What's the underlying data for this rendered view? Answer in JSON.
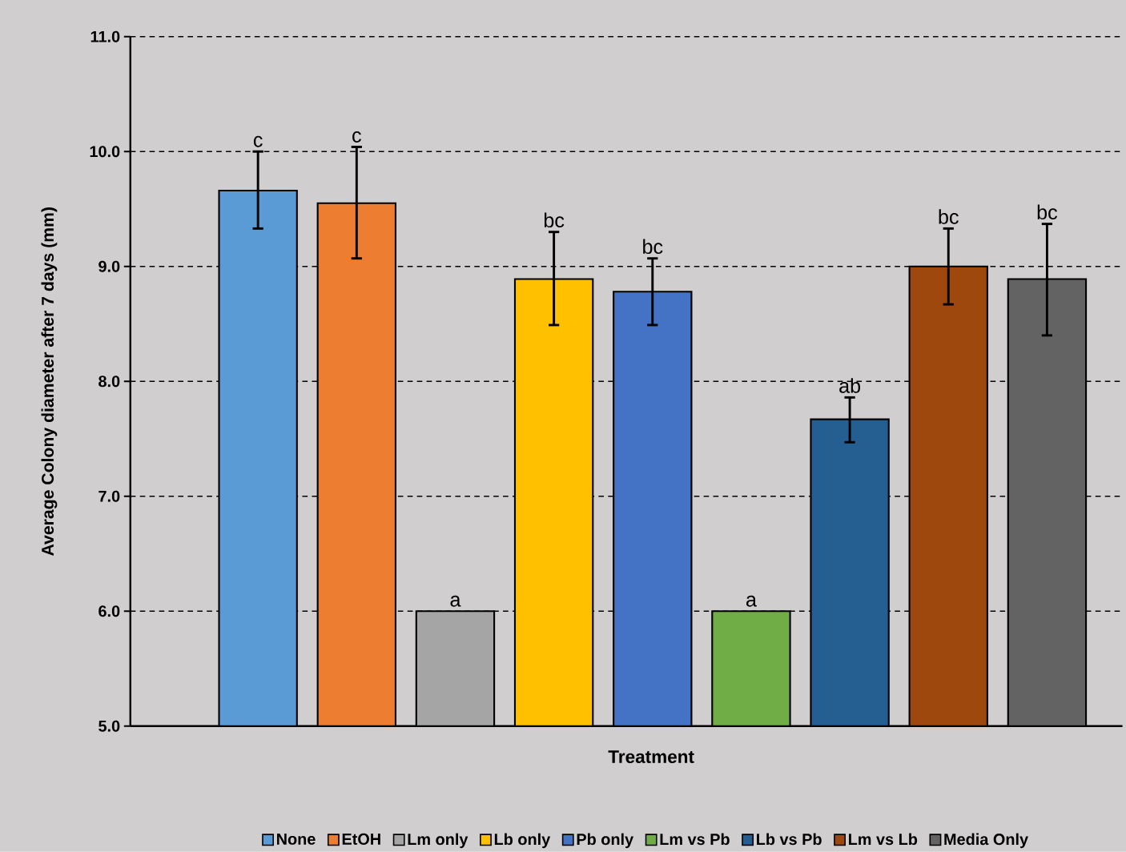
{
  "chart_data": {
    "type": "bar",
    "xlabel": "Treatment",
    "ylabel": "Average Colony diameter after 7 days (mm)",
    "categories": [
      null
    ],
    "series": [
      {
        "name": "None",
        "color": "#5b9bd5",
        "values": [
          9.66
        ],
        "errors": [
          [
            9.33,
            10.0
          ]
        ]
      },
      {
        "name": "EtOH",
        "color": "#ed7d31",
        "values": [
          9.55
        ],
        "errors": [
          [
            9.07,
            10.04
          ]
        ]
      },
      {
        "name": "Lm only",
        "color": "#a5a5a5",
        "values": [
          6.0
        ]
      },
      {
        "name": "Lb only",
        "color": "#ffc000",
        "values": [
          8.89
        ],
        "errors": [
          [
            8.49,
            9.3
          ]
        ]
      },
      {
        "name": "Pb only",
        "color": "#4472c4",
        "values": [
          8.78
        ],
        "errors": [
          [
            8.49,
            9.07
          ]
        ]
      },
      {
        "name": "Lm vs Pb",
        "color": "#70ad47",
        "values": [
          6.0
        ]
      },
      {
        "name": "Lb vs Pb",
        "color": "#255e91",
        "values": [
          7.67
        ],
        "errors": [
          [
            7.47,
            7.86
          ]
        ]
      },
      {
        "name": "Lm vs Lb",
        "color": "#9e480e",
        "values": [
          9.0
        ],
        "errors": [
          [
            8.67,
            9.33
          ]
        ]
      },
      {
        "name": "Media Only",
        "color": "#636363",
        "values": [
          8.89
        ],
        "errors": [
          [
            8.4,
            9.37
          ]
        ]
      }
    ],
    "ylim": [
      5.0,
      11.0
    ],
    "yticks": [
      {
        "value": 5,
        "label": "5.0"
      },
      {
        "value": 6,
        "label": "6.0"
      },
      {
        "value": 7,
        "label": "7.0"
      },
      {
        "value": 8,
        "label": "8.0"
      },
      {
        "value": 9,
        "label": "9.0"
      },
      {
        "value": 10,
        "label": "10.0"
      },
      {
        "value": 11,
        "label": "11.0"
      }
    ],
    "grid": "y",
    "legend": "bottom",
    "annotations": [
      "c",
      "c",
      "a",
      "bc",
      "bc",
      "a",
      "ab",
      "bc",
      "bc"
    ]
  }
}
